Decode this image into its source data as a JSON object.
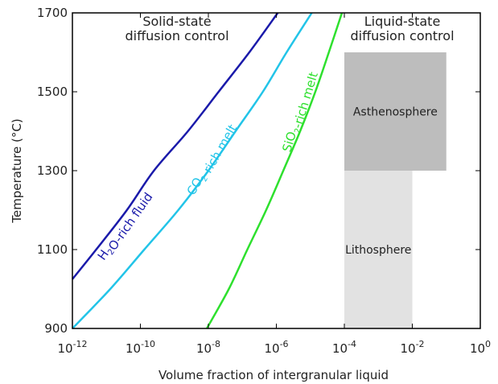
{
  "chart_data": {
    "type": "line",
    "xlabel": "Volume fraction of intergranular liquid",
    "ylabel": "Temperature (°C)",
    "xscale": "log",
    "xlim": [
      1e-12,
      1
    ],
    "ylim": [
      900,
      1700
    ],
    "xticks": [
      {
        "value": 1e-12,
        "label": "10-12"
      },
      {
        "value": 1e-10,
        "label": "10-10"
      },
      {
        "value": 1e-08,
        "label": "10-8"
      },
      {
        "value": 1e-06,
        "label": "10-6"
      },
      {
        "value": 0.0001,
        "label": "10-4"
      },
      {
        "value": 0.01,
        "label": "10-2"
      },
      {
        "value": 1,
        "label": "100"
      }
    ],
    "yticks": [
      900,
      1100,
      1300,
      1500,
      1700
    ],
    "series": [
      {
        "name": "H2O-rich fluid",
        "color": "#1a1aaa",
        "x": [
          1e-12,
          5e-12,
          4e-11,
          2.5e-10,
          2.5e-09,
          2e-08,
          1.6e-07,
          1.1e-06
        ],
        "values": [
          1025,
          1100,
          1200,
          1300,
          1400,
          1500,
          1600,
          1700
        ]
      },
      {
        "name": "CO2-rich melt",
        "color": "#22c4e8",
        "x": [
          1e-12,
          1.3e-11,
          1.3e-10,
          1.3e-09,
          1e-08,
          6.3e-08,
          4e-07,
          2e-06,
          1.1e-05
        ],
        "values": [
          900,
          1000,
          1100,
          1200,
          1300,
          1400,
          1500,
          1600,
          1700
        ]
      },
      {
        "name": "SiO2-rich melt",
        "color": "#2ee02e",
        "x": [
          9e-09,
          4e-08,
          1.4e-07,
          5e-07,
          1.6e-06,
          5e-06,
          1.4e-05,
          3.5e-05,
          8.5e-05
        ],
        "values": [
          900,
          1000,
          1100,
          1200,
          1300,
          1400,
          1500,
          1600,
          1700
        ]
      }
    ],
    "regions": [
      {
        "label": "Asthenosphere",
        "x": [
          0.0001,
          0.1
        ],
        "y": [
          1300,
          1600
        ],
        "color": "#bdbdbd"
      },
      {
        "label": "Lithosphere",
        "x": [
          0.0001,
          0.01
        ],
        "y": [
          900,
          1300
        ],
        "color": "#e2e2e2"
      }
    ],
    "annotations": [
      {
        "lines": [
          "Solid-state",
          "diffusion control"
        ]
      },
      {
        "lines": [
          "Liquid-state",
          "diffusion control"
        ]
      }
    ]
  }
}
